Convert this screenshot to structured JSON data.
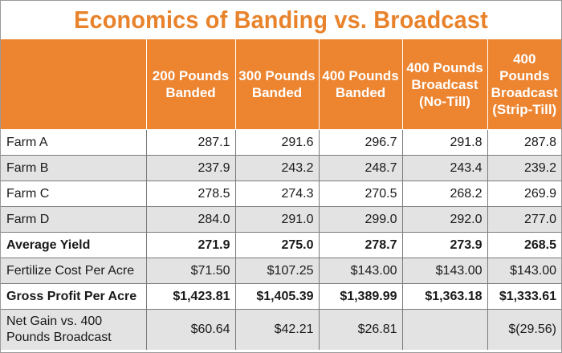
{
  "title": "Economics of Banding vs. Broadcast",
  "header": {
    "corner": "",
    "columns": [
      "200 Pounds Banded",
      "300 Pounds Banded",
      "400 Pounds Banded",
      "400 Pounds Broadcast (No-Till)",
      "400 Pounds Broadcast (Strip-Till)"
    ]
  },
  "rows": [
    {
      "label": "Farm A",
      "values": [
        "287.1",
        "291.6",
        "296.7",
        "291.8",
        "287.8"
      ]
    },
    {
      "label": "Farm B",
      "values": [
        "237.9",
        "243.2",
        "248.7",
        "243.4",
        "239.2"
      ]
    },
    {
      "label": "Farm C",
      "values": [
        "278.5",
        "274.3",
        "270.5",
        "268.2",
        "269.9"
      ]
    },
    {
      "label": "Farm D",
      "values": [
        "284.0",
        "291.0",
        "299.0",
        "292.0",
        "277.0"
      ]
    },
    {
      "label": "Average Yield",
      "values": [
        "271.9",
        "275.0",
        "278.7",
        "273.9",
        "268.5"
      ]
    },
    {
      "label": "Fertilize Cost Per Acre",
      "values": [
        "$71.50",
        "$107.25",
        "$143.00",
        "$143.00",
        "$143.00"
      ]
    },
    {
      "label": "Gross Profit Per Acre",
      "values": [
        "$1,423.81",
        "$1,405.39",
        "$1,389.99",
        "$1,363.18",
        "$1,333.61"
      ]
    },
    {
      "label": "Net Gain vs. 400 Pounds Broadcast",
      "values": [
        "$60.64",
        "$42.21",
        "$26.81",
        "",
        "$(29.56)"
      ]
    }
  ],
  "colors": {
    "title": "#e8822b",
    "header_bg": "#ec8430",
    "header_text": "#ffffff",
    "row_alt_bg": "#e3e3e3"
  }
}
